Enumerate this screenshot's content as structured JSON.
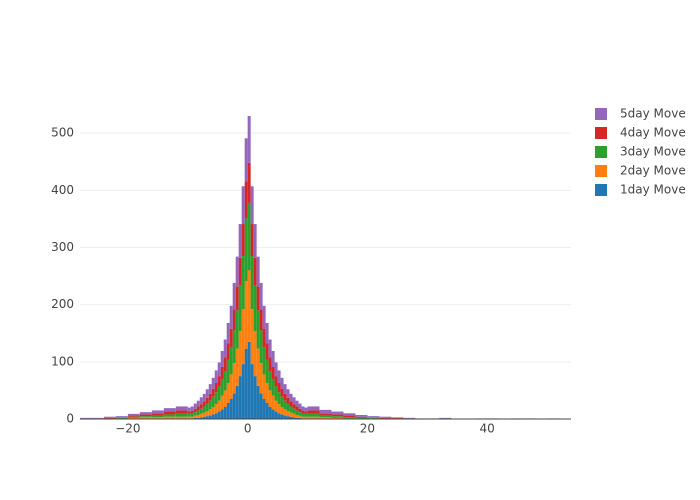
{
  "chart_data": {
    "type": "histogram",
    "stacked": true,
    "bins": [
      -28,
      -26,
      -24,
      -22,
      -20,
      -18,
      -16,
      -14,
      -12,
      -10,
      -9.5,
      -9,
      -8.5,
      -8,
      -7.5,
      -7,
      -6.5,
      -6,
      -5.5,
      -5,
      -4.5,
      -4,
      -3.5,
      -3,
      -2.5,
      -2,
      -1.5,
      -1,
      -0.5,
      0,
      0.5,
      1,
      1.5,
      2,
      2.5,
      3,
      3.5,
      4,
      4.5,
      5,
      5.5,
      6,
      6.5,
      7,
      7.5,
      8,
      8.5,
      9,
      9.5,
      10,
      12,
      14,
      16,
      18,
      20,
      22,
      24,
      26,
      28,
      30,
      32,
      34,
      36,
      38,
      40,
      42,
      44,
      46,
      48,
      50,
      52,
      54
    ],
    "series": [
      {
        "name": "1day Move",
        "color": "#1f77b4",
        "values": [
          0,
          0,
          0,
          0,
          1,
          1,
          1,
          1,
          1,
          1,
          1,
          2,
          2,
          3,
          4,
          5,
          6,
          8,
          10,
          13,
          17,
          21,
          28,
          35,
          45,
          58,
          75,
          96,
          123,
          135,
          96,
          75,
          58,
          45,
          35,
          28,
          21,
          17,
          13,
          10,
          8,
          6,
          5,
          4,
          3,
          2,
          2,
          1,
          1,
          1,
          1,
          0,
          0,
          0,
          0,
          0,
          0,
          0,
          0,
          0,
          0,
          0,
          0,
          0,
          0,
          0,
          0,
          0,
          0,
          0,
          0
        ]
      },
      {
        "name": "2day Move",
        "color": "#ff7f0e",
        "values": [
          0,
          0,
          1,
          1,
          1,
          2,
          2,
          3,
          3,
          3,
          3,
          4,
          5,
          6,
          7,
          9,
          11,
          13,
          16,
          19,
          24,
          29,
          35,
          43,
          53,
          65,
          79,
          96,
          118,
          125,
          96,
          79,
          65,
          53,
          43,
          35,
          29,
          24,
          19,
          16,
          13,
          11,
          9,
          7,
          6,
          5,
          4,
          3,
          3,
          3,
          2,
          2,
          1,
          1,
          1,
          0,
          0,
          0,
          0,
          0,
          0,
          0,
          0,
          0,
          0,
          0,
          0,
          0,
          0,
          0,
          0
        ]
      },
      {
        "name": "3day Move",
        "color": "#2ca02c",
        "values": [
          0,
          1,
          0,
          1,
          2,
          2,
          3,
          4,
          5,
          5,
          5,
          6,
          8,
          9,
          11,
          13,
          15,
          18,
          21,
          25,
          29,
          34,
          41,
          48,
          57,
          67,
          79,
          93,
          110,
          118,
          93,
          79,
          67,
          57,
          48,
          41,
          34,
          29,
          25,
          21,
          18,
          15,
          13,
          11,
          9,
          8,
          6,
          5,
          5,
          5,
          3,
          3,
          2,
          1,
          1,
          1,
          1,
          0,
          0,
          1,
          0,
          0,
          0,
          0,
          1,
          0,
          0,
          0,
          0,
          0,
          0
        ]
      },
      {
        "name": "4day Move",
        "color": "#d62728",
        "values": [
          1,
          0,
          1,
          1,
          2,
          3,
          4,
          5,
          6,
          4,
          5,
          6,
          7,
          8,
          9,
          10,
          12,
          14,
          16,
          18,
          21,
          24,
          28,
          32,
          37,
          42,
          49,
          56,
          65,
          70,
          56,
          49,
          42,
          37,
          32,
          28,
          24,
          21,
          18,
          16,
          14,
          12,
          10,
          9,
          8,
          7,
          6,
          5,
          4,
          6,
          4,
          3,
          3,
          2,
          1,
          1,
          1,
          1,
          0,
          0,
          1,
          0,
          0,
          0,
          0,
          0,
          0,
          1,
          0,
          0,
          0
        ]
      },
      {
        "name": "5day Move",
        "color": "#9467bd",
        "values": [
          1,
          1,
          2,
          2,
          3,
          4,
          5,
          6,
          7,
          7,
          8,
          9,
          10,
          12,
          13,
          15,
          17,
          19,
          22,
          24,
          28,
          31,
          36,
          40,
          46,
          52,
          59,
          66,
          75,
          82,
          66,
          59,
          52,
          46,
          40,
          36,
          31,
          28,
          24,
          22,
          19,
          17,
          15,
          13,
          12,
          10,
          9,
          8,
          7,
          7,
          6,
          5,
          4,
          3,
          2,
          2,
          1,
          1,
          1,
          0,
          1,
          0,
          0,
          1,
          0,
          0,
          1,
          0,
          0,
          1,
          0
        ]
      }
    ],
    "xlim": [
      -28,
      54
    ],
    "ylim": [
      0,
      558
    ],
    "xticks": [
      {
        "value": -20,
        "label": "−20"
      },
      0,
      20,
      40
    ],
    "yticks": [
      0,
      100,
      200,
      300,
      400,
      500
    ],
    "grid": true
  }
}
